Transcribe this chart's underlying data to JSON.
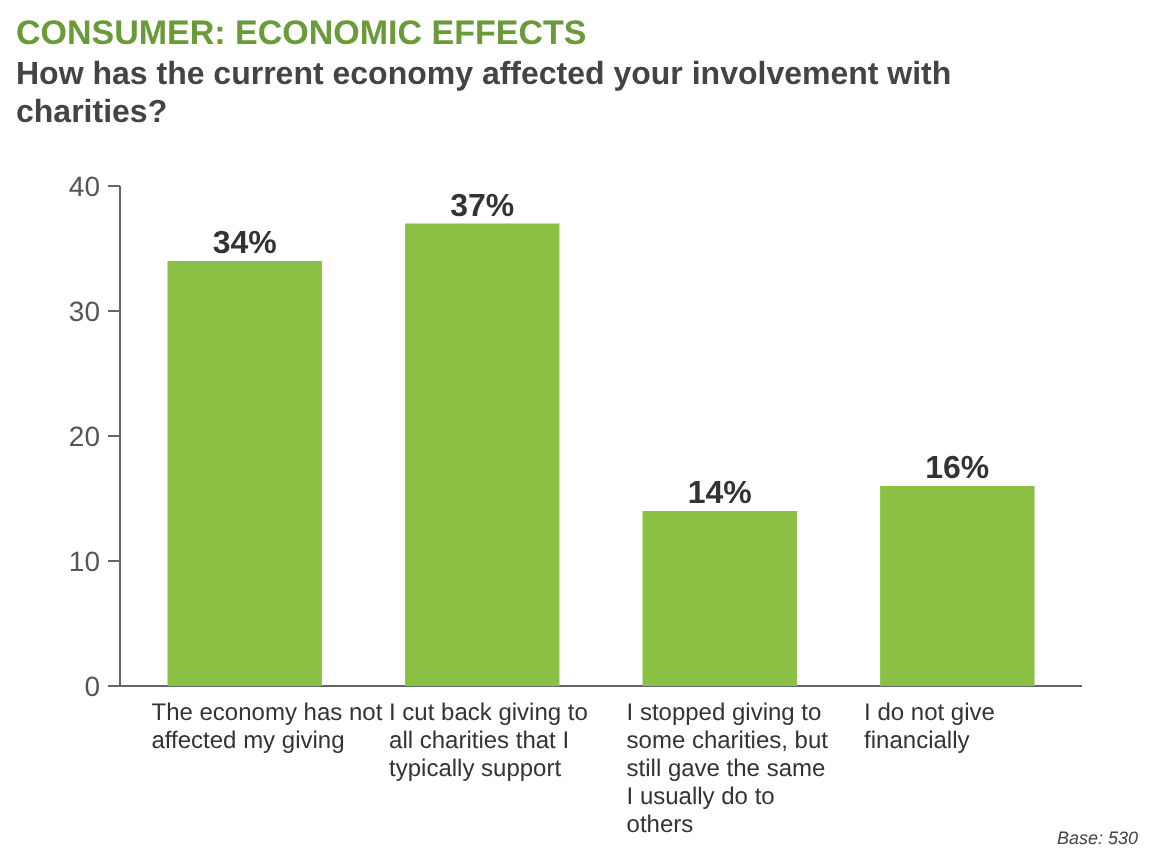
{
  "chart_data": {
    "type": "bar",
    "title": "CONSUMER: ECONOMIC EFFECTS",
    "subtitle": "How has the current economy affected your involvement with charities?",
    "categories": [
      "The economy has not affected my giving",
      "I cut back giving to all charities that I typically support",
      "I stopped giving to some charities, but still gave the same I usually do to others",
      "I do not give financially"
    ],
    "values": [
      34,
      37,
      14,
      16
    ],
    "value_labels": [
      "34%",
      "37%",
      "14%",
      "16%"
    ],
    "color": "#8cc044",
    "ylim": [
      0,
      40
    ],
    "yticks": [
      0,
      10,
      20,
      30,
      40
    ],
    "grid": false,
    "annotations": [
      "Base: 530"
    ]
  }
}
